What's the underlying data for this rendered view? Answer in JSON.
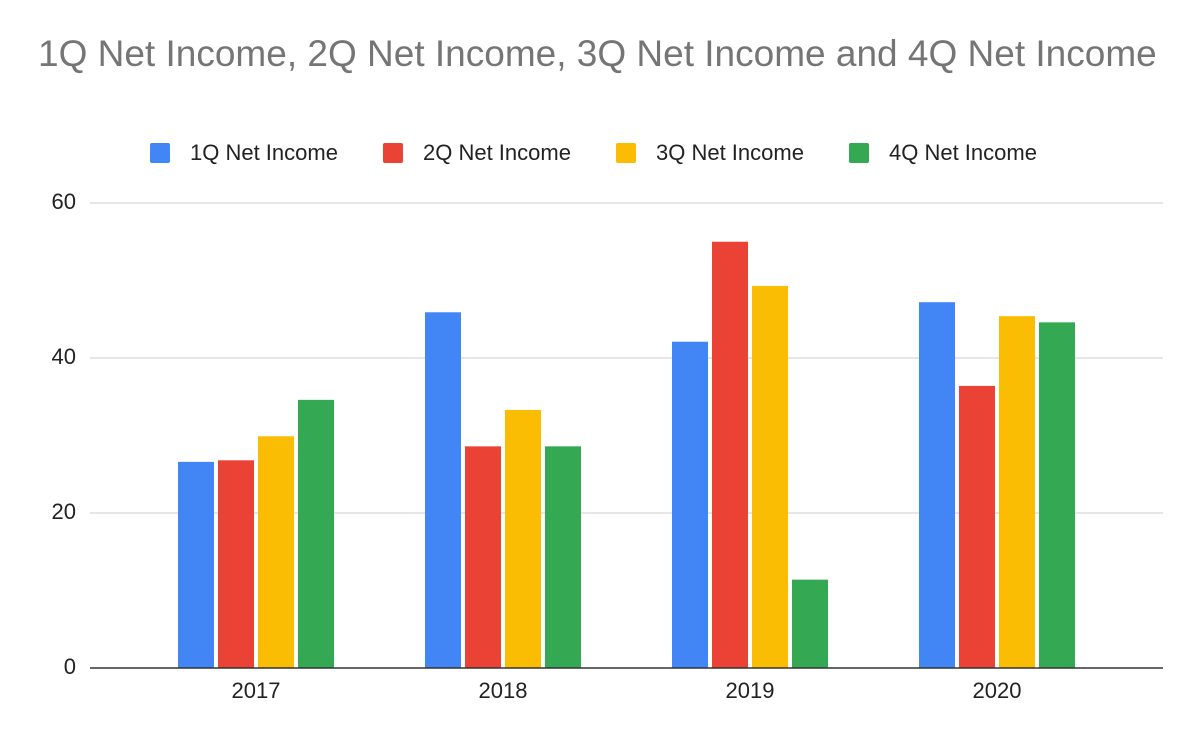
{
  "chart_data": {
    "type": "bar",
    "title": "1Q Net Income, 2Q Net Income, 3Q Net Income and 4Q Net Income",
    "categories": [
      "2017",
      "2018",
      "2019",
      "2020"
    ],
    "series": [
      {
        "name": "1Q Net Income",
        "color": "#4285f4",
        "values": [
          26.6,
          45.9,
          42.1,
          47.2
        ]
      },
      {
        "name": "2Q Net Income",
        "color": "#ea4335",
        "values": [
          26.8,
          28.6,
          55.0,
          36.4
        ]
      },
      {
        "name": "3Q Net Income",
        "color": "#fbbc04",
        "values": [
          29.9,
          33.3,
          49.3,
          45.4
        ]
      },
      {
        "name": "4Q Net Income",
        "color": "#34a853",
        "values": [
          34.6,
          28.6,
          11.4,
          44.6
        ]
      }
    ],
    "ylim": [
      0,
      60
    ],
    "yticks": [
      0,
      20,
      40,
      60
    ],
    "grid": true,
    "legend": "top"
  }
}
